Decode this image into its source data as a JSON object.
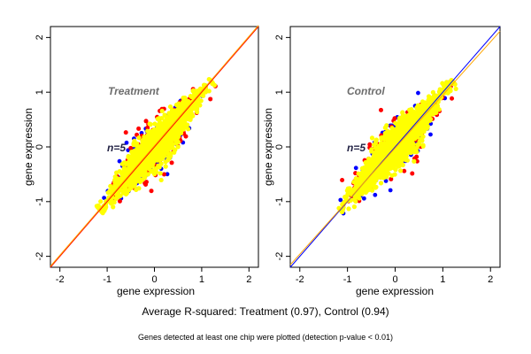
{
  "figure": {
    "caption": "Average R-squared: Treatment (0.97), Control (0.94)",
    "note": "Genes detected at least one chip were plotted (detection p-value < 0.01)"
  },
  "colors": {
    "point_main": "#ffff00",
    "point_red": "#ff0000",
    "point_blue": "#0000ff",
    "line_red": "#ff0000",
    "line_orange": "#ffa500",
    "line_blue": "#0000ff"
  },
  "chart_data": [
    {
      "type": "scatter",
      "panel_label": "Treatment",
      "n_label": "n=5",
      "xlabel": "gene expression",
      "ylabel": "gene expression",
      "xlim": [
        -2.2,
        2.2
      ],
      "ylim": [
        -2.2,
        2.2
      ],
      "xticks": [
        -2,
        -1,
        0,
        1,
        2
      ],
      "yticks": [
        -2,
        -1,
        0,
        1,
        2
      ],
      "point_cloud": {
        "x_range": [
          -1.15,
          1.2
        ],
        "y_range": [
          -1.15,
          1.2
        ]
      },
      "reference_lines": [
        {
          "color": "#ff0000",
          "slope": 1.0,
          "intercept": 0.0
        },
        {
          "color": "#ffa500",
          "slope": 1.0,
          "intercept": 0.02
        }
      ]
    },
    {
      "type": "scatter",
      "panel_label": "Control",
      "n_label": "n=5",
      "xlabel": "gene expression",
      "ylabel": "gene expression",
      "xlim": [
        -2.2,
        2.2
      ],
      "ylim": [
        -2.2,
        2.2
      ],
      "xticks": [
        -2,
        -1,
        0,
        1,
        2
      ],
      "yticks": [
        -2,
        -1,
        0,
        1,
        2
      ],
      "point_cloud": {
        "x_range": [
          -1.15,
          1.2
        ],
        "y_range": [
          -1.15,
          1.2
        ]
      },
      "reference_lines": [
        {
          "color": "#0000ff",
          "slope": 1.0,
          "intercept": 0.0
        },
        {
          "color": "#ffa500",
          "slope": 0.97,
          "intercept": -0.02
        }
      ]
    }
  ]
}
